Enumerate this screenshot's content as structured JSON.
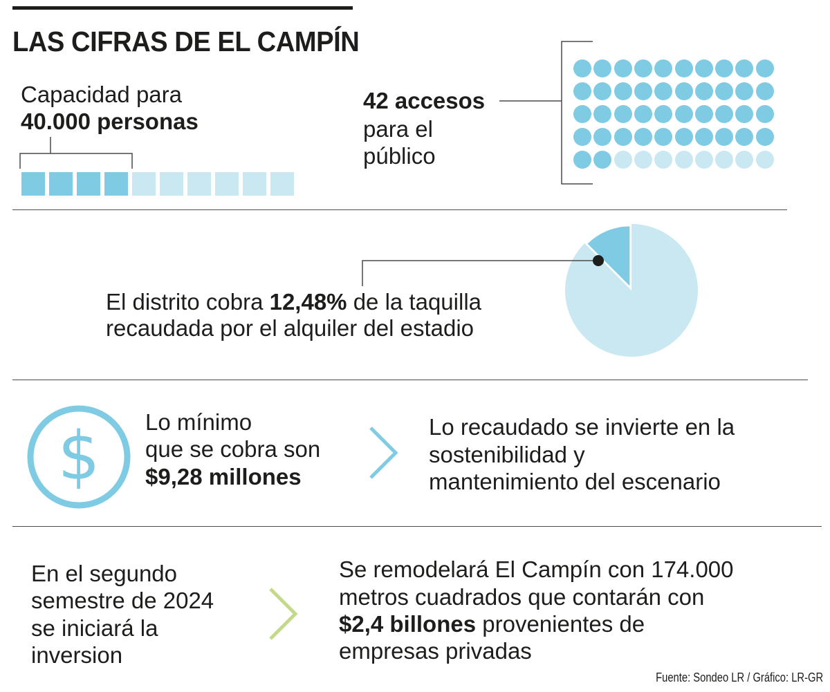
{
  "header": {
    "title": "LAS CIFRAS DE EL CAMPÍN"
  },
  "capacity": {
    "line1": "Capacidad para",
    "line2_bold": "40.000 personas",
    "squares_total": 10,
    "squares_filled": 4
  },
  "accesses": {
    "line1_bold": "42 accesos",
    "line2": "para el",
    "line3": "público",
    "dots_total": 50,
    "dots_filled": 42
  },
  "district": {
    "line1_pre": "El distrito cobra ",
    "line1_bold": "12,48%",
    "line1_post": " de la taquilla",
    "line2": "recaudada por el alquiler del estadio",
    "pie_fraction": 0.1248
  },
  "minimum": {
    "line1": "Lo mínimo",
    "line2": "que se cobra son",
    "line3_bold": "$9,28 millones",
    "icon": "dollar-circle-icon"
  },
  "investment_use": {
    "line1": "Lo recaudado se invierte en la",
    "line2": "sostenibilidad y",
    "line3": "mantenimiento del escenario"
  },
  "schedule": {
    "line1": "En el segundo",
    "line2": "semestre de 2024",
    "line3": "se iniciará la",
    "line4": "inversion"
  },
  "remodel": {
    "line1": "Se remodelará El Campín con 174.000",
    "line2": "metros cuadrados que contarán con",
    "line3_bold": "$2,4 billones",
    "line3_post": " provenientes de",
    "line4": "empresas privadas"
  },
  "footer": {
    "source": "Fuente: Sondeo LR / Gráfico: LR-GR"
  },
  "colors": {
    "accent_blue": "#7ecbe3",
    "light_blue": "#c9e8f2",
    "accent_green": "#c5d98a",
    "text": "#1d1d1b"
  }
}
